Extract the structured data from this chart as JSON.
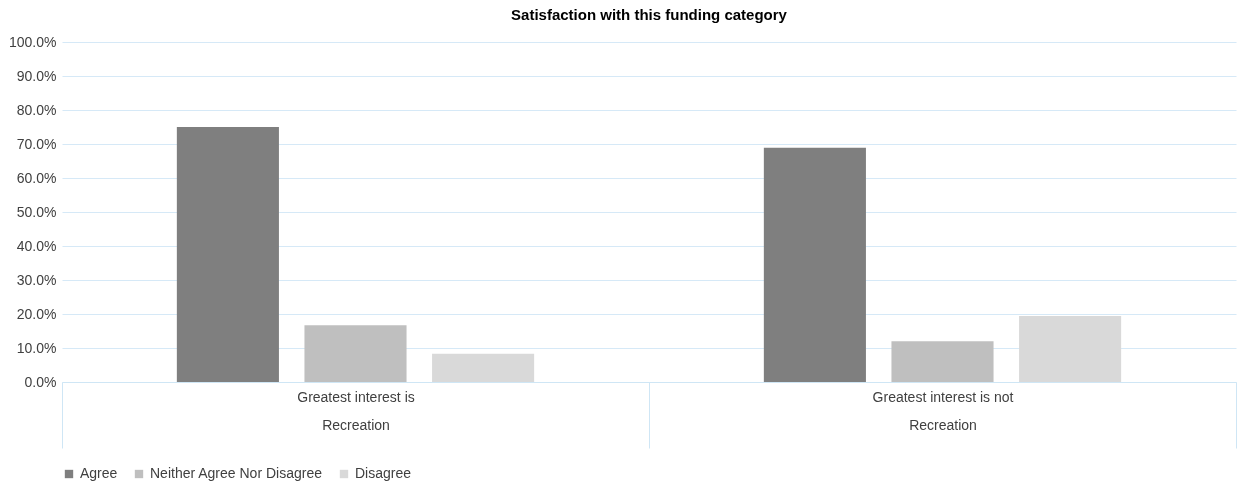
{
  "chart_data": {
    "type": "bar",
    "title": "Satisfaction with this funding category",
    "categories": [
      "Greatest interest is Recreation",
      "Greatest interest is not Recreation"
    ],
    "series": [
      {
        "name": "Agree",
        "color": "#7f7f7f",
        "values": [
          75.0,
          68.9
        ]
      },
      {
        "name": "Neither Agree Nor Disagree",
        "color": "#bfbfbf",
        "values": [
          16.7,
          12.0
        ]
      },
      {
        "name": "Disagree",
        "color": "#d9d9d9",
        "values": [
          8.3,
          19.4
        ]
      }
    ],
    "ylim": [
      0,
      100
    ],
    "yticks": [
      {
        "value": 0,
        "label": "0.0%"
      },
      {
        "value": 10,
        "label": "10.0%"
      },
      {
        "value": 20,
        "label": "20.0%"
      },
      {
        "value": 30,
        "label": "30.0%"
      },
      {
        "value": 40,
        "label": "40.0%"
      },
      {
        "value": 50,
        "label": "50.0%"
      },
      {
        "value": 60,
        "label": "60.0%"
      },
      {
        "value": 70,
        "label": "70.0%"
      },
      {
        "value": 80,
        "label": "80.0%"
      },
      {
        "value": 90,
        "label": "90.0%"
      },
      {
        "value": 100,
        "label": "100.0%"
      }
    ],
    "grid": "y",
    "legend": "bottom"
  }
}
